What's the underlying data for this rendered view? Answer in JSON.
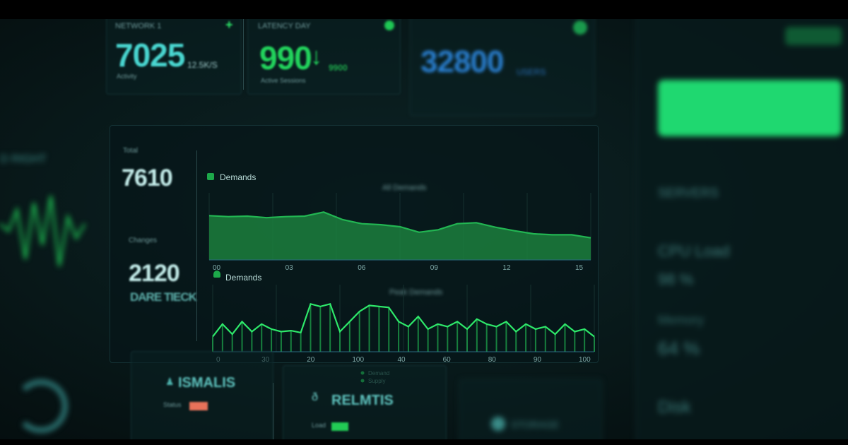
{
  "kpis": {
    "kpi1": {
      "label": "NETWORK 1",
      "value": "7025",
      "unit": "12.5K/S",
      "sub": "Activity",
      "color": "#49d6d0"
    },
    "kpi2": {
      "label": "LATENCY DAY",
      "value": "990",
      "unit": "9900",
      "sub": "Active Sessions",
      "color": "#22d35c"
    },
    "kpi3": {
      "value": "32800",
      "unit": "USERS",
      "color": "#2a7fd0"
    },
    "side1": {
      "label": "Total",
      "value": "7610"
    },
    "side2": {
      "label": "Changes",
      "value": "2120",
      "sub": "DARE TIECK"
    },
    "left_title": "D RIGHT"
  },
  "right_panel": {
    "button_color": "#1fd870",
    "items": [
      "SERVERS",
      "CPU Load",
      "98 %",
      "Memory",
      "64 %",
      "Disk"
    ]
  },
  "charts_header": {
    "title_top": "Demands",
    "title_bottom": "Demands",
    "subtitle_top": "All Demands",
    "subtitle_bottom": "Peak Demands"
  },
  "chart_data": [
    {
      "type": "area",
      "title": "Demands",
      "x": [
        0,
        1,
        2,
        3,
        4,
        5,
        6,
        7,
        8,
        9,
        10,
        11,
        12,
        13,
        14,
        15,
        16,
        17,
        18,
        19,
        20
      ],
      "values": [
        88,
        86,
        87,
        84,
        86,
        87,
        95,
        80,
        72,
        70,
        66,
        55,
        60,
        72,
        74,
        65,
        58,
        52,
        50,
        50,
        44
      ],
      "x_tick_labels": [
        "00",
        "03",
        "06",
        "09",
        "12",
        "15"
      ],
      "color": "#22b552"
    },
    {
      "type": "line",
      "title": "Demands",
      "x": [
        0,
        1,
        2,
        3,
        4,
        5,
        6,
        7,
        8,
        9,
        10,
        11,
        12,
        13,
        14,
        15,
        16,
        17,
        18,
        19,
        20,
        21,
        22,
        23,
        24,
        25,
        26,
        27,
        28,
        29,
        30,
        31,
        32,
        33,
        34,
        35,
        36,
        37,
        38,
        39
      ],
      "values": [
        30,
        55,
        35,
        60,
        40,
        55,
        45,
        40,
        42,
        38,
        95,
        90,
        95,
        40,
        60,
        80,
        92,
        90,
        88,
        60,
        50,
        70,
        45,
        55,
        50,
        60,
        45,
        65,
        55,
        50,
        60,
        40,
        55,
        45,
        50,
        35,
        55,
        40,
        45,
        30
      ],
      "x_tick_labels": [
        "0",
        "30",
        "20",
        "100",
        "40",
        "60",
        "80",
        "90",
        "100"
      ],
      "legend": [
        "Demand",
        "Supply"
      ],
      "color": "#2ee86a"
    }
  ],
  "bottom": {
    "card1": {
      "title": "ISMALIS",
      "status_label": "Status",
      "status_color": "#e8725a"
    },
    "card2": {
      "title": "RELMTIS",
      "status_label": "Load",
      "status_color": "#22cc55"
    },
    "card3": {
      "title": "STORAGE"
    }
  }
}
